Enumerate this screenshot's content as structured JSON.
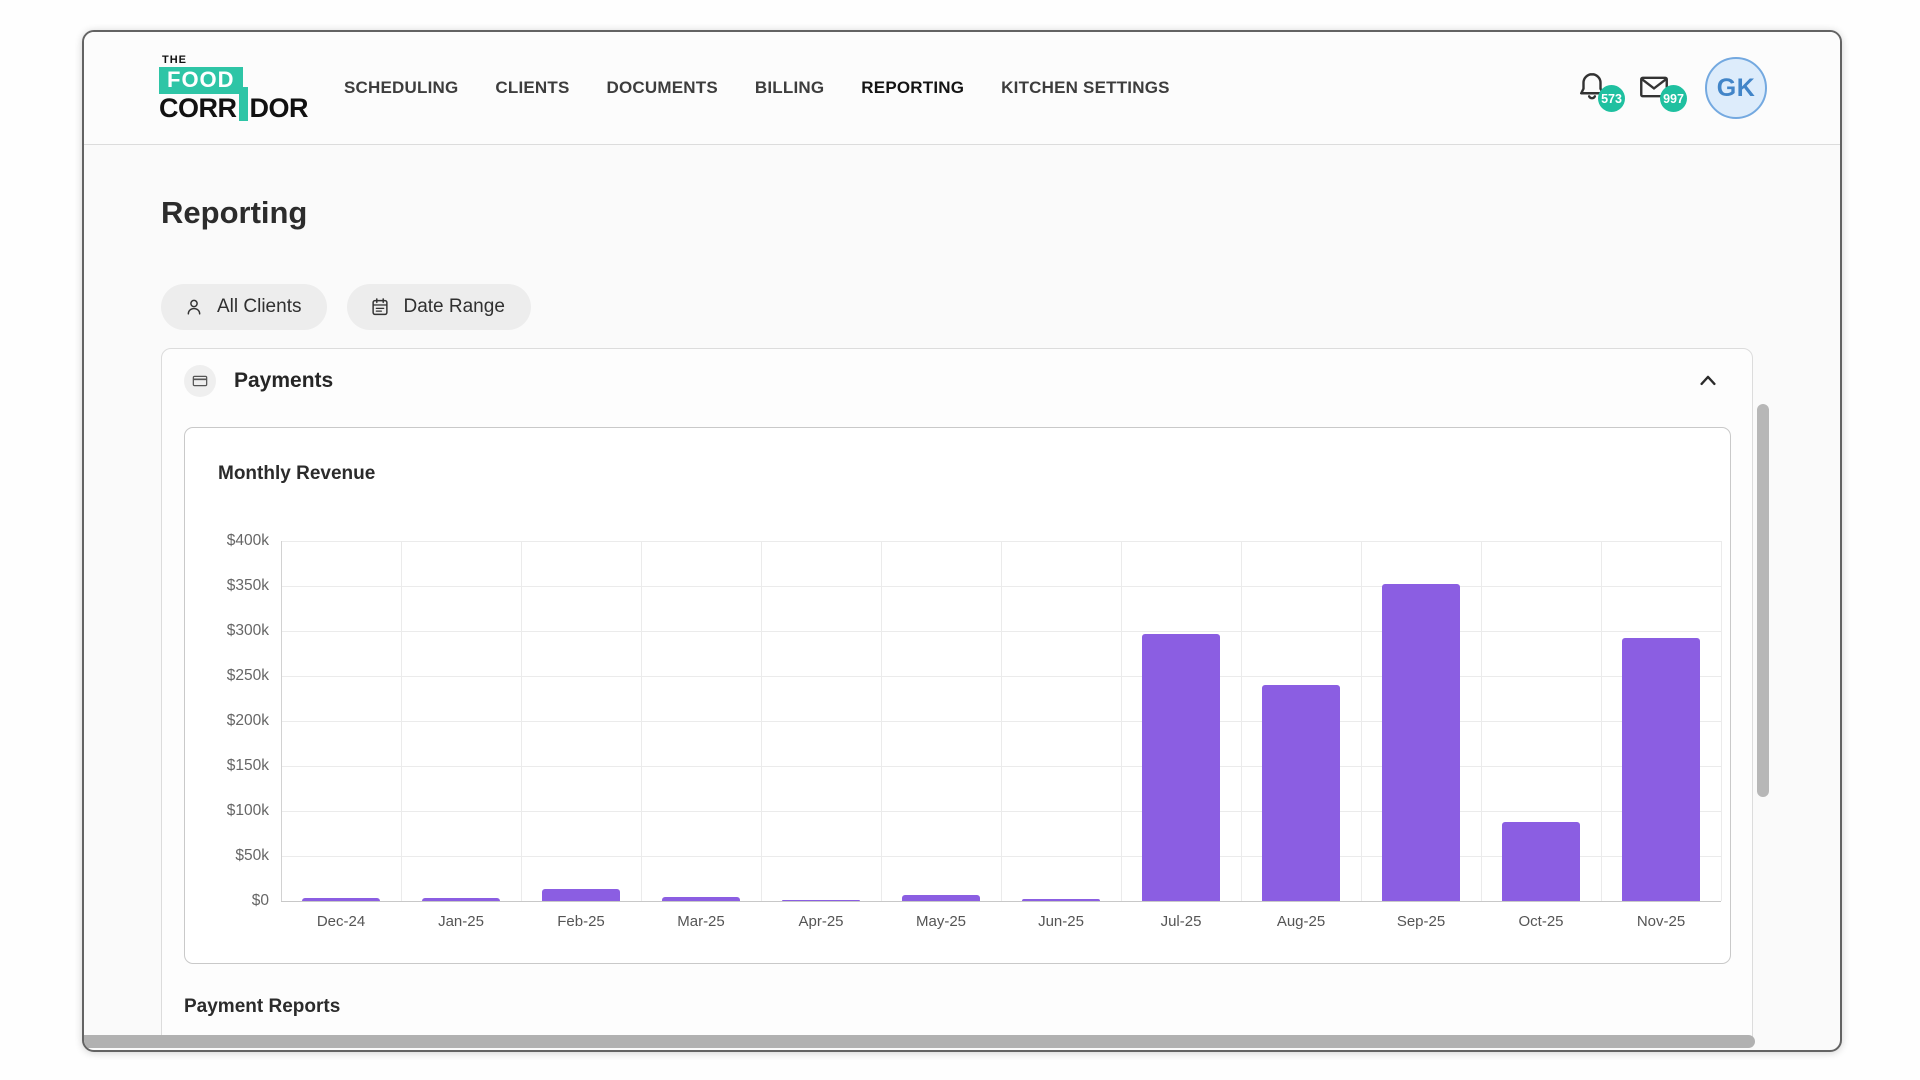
{
  "header": {
    "logo": {
      "top": "THE",
      "food": "FOOD",
      "corr": "CORR",
      "dor": "DOR"
    },
    "nav": [
      {
        "label": "SCHEDULING",
        "active": false
      },
      {
        "label": "CLIENTS",
        "active": false
      },
      {
        "label": "DOCUMENTS",
        "active": false
      },
      {
        "label": "BILLING",
        "active": false
      },
      {
        "label": "REPORTING",
        "active": true
      },
      {
        "label": "KITCHEN SETTINGS",
        "active": false
      }
    ],
    "bell_badge": "573",
    "mail_badge": "997",
    "avatar_initials": "GK"
  },
  "page": {
    "title": "Reporting",
    "filters": {
      "clients_label": "All Clients",
      "date_range_label": "Date Range"
    }
  },
  "payments": {
    "title": "Payments",
    "reports_title": "Payment Reports"
  },
  "chart_data": {
    "type": "bar",
    "title": "Monthly Revenue",
    "categories": [
      "Dec-24",
      "Jan-25",
      "Feb-25",
      "Mar-25",
      "Apr-25",
      "May-25",
      "Jun-25",
      "Jul-25",
      "Aug-25",
      "Sep-25",
      "Oct-25",
      "Nov-25"
    ],
    "values_thousands": [
      3,
      3,
      13,
      5,
      1.5,
      7,
      2,
      297,
      240,
      352,
      88,
      292
    ],
    "ylabel_ticks": [
      "$400k",
      "$350k",
      "$300k",
      "$250k",
      "$200k",
      "$150k",
      "$100k",
      "$50k",
      "$0"
    ],
    "ylim_thousands": [
      0,
      400
    ],
    "grid": true,
    "legend": "none",
    "bar_color": "#8b5ee2"
  },
  "colors": {
    "brand_teal": "#2ec5a6",
    "badge_teal": "#1fc0a0",
    "bar_purple": "#8b5ee2",
    "avatar_bg": "#ddecfb",
    "avatar_border": "#74a9e0",
    "avatar_text": "#4285c8"
  }
}
